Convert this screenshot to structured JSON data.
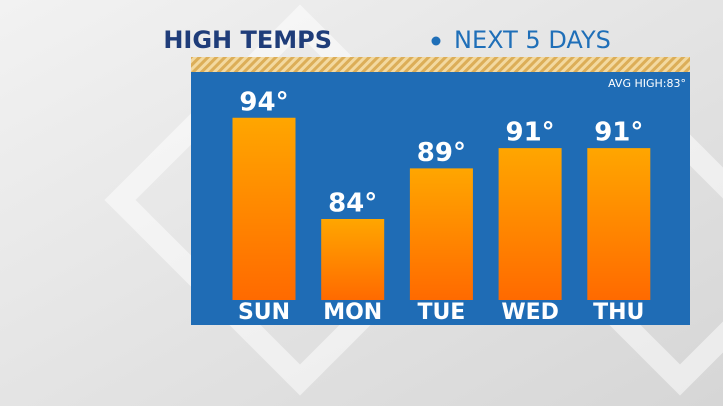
{
  "chart_data": {
    "type": "bar",
    "title": "HIGH TEMPS",
    "subtitle": "NEXT 5 DAYS",
    "annotation": "AVG HIGH:83°",
    "categories": [
      "SUN",
      "MON",
      "TUE",
      "WED",
      "THU"
    ],
    "values": [
      94,
      84,
      89,
      91,
      91
    ],
    "value_labels": [
      "94°",
      "84°",
      "89°",
      "91°",
      "91°"
    ],
    "color": "#ff6a00",
    "ylim": [
      76,
      100
    ]
  }
}
